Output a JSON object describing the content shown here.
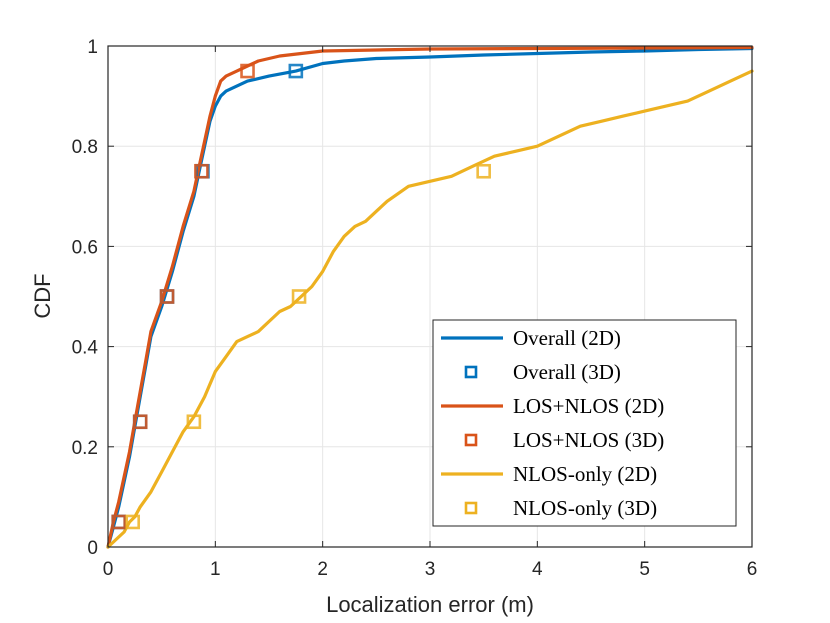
{
  "chart_data": {
    "type": "line",
    "title": "",
    "xlabel": "Localization error (m)",
    "ylabel": "CDF",
    "xlim": [
      0,
      6
    ],
    "ylim": [
      0,
      1
    ],
    "xticks": [
      "0",
      "1",
      "2",
      "3",
      "4",
      "5",
      "6"
    ],
    "yticks": [
      "0",
      "0.2",
      "0.4",
      "0.6",
      "0.8",
      "1"
    ],
    "grid": true,
    "legend_position": "bottom-right",
    "series": [
      {
        "name": "Overall (2D)",
        "kind": "line",
        "color": "#0072BD",
        "x": [
          0,
          0.05,
          0.1,
          0.15,
          0.2,
          0.25,
          0.3,
          0.35,
          0.4,
          0.5,
          0.6,
          0.7,
          0.8,
          0.85,
          0.9,
          0.95,
          1.0,
          1.05,
          1.1,
          1.2,
          1.3,
          1.5,
          1.75,
          2.0,
          2.2,
          2.5,
          3.0,
          3.5,
          4.0,
          4.5,
          5.0,
          5.5,
          6.0
        ],
        "y": [
          0,
          0.04,
          0.08,
          0.13,
          0.18,
          0.24,
          0.3,
          0.36,
          0.42,
          0.48,
          0.55,
          0.63,
          0.7,
          0.75,
          0.8,
          0.85,
          0.88,
          0.9,
          0.91,
          0.92,
          0.93,
          0.94,
          0.95,
          0.965,
          0.97,
          0.975,
          0.978,
          0.982,
          0.985,
          0.988,
          0.99,
          0.993,
          0.995
        ]
      },
      {
        "name": "Overall (3D)",
        "kind": "markers",
        "color": "#0072BD",
        "x": [
          0.1,
          0.3,
          0.55,
          0.88,
          1.75
        ],
        "y": [
          0.05,
          0.25,
          0.5,
          0.75,
          0.95
        ]
      },
      {
        "name": "LOS+NLOS (2D)",
        "kind": "line",
        "color": "#D95319",
        "x": [
          0,
          0.05,
          0.1,
          0.15,
          0.2,
          0.25,
          0.3,
          0.35,
          0.4,
          0.5,
          0.6,
          0.7,
          0.8,
          0.85,
          0.9,
          0.95,
          1.0,
          1.05,
          1.1,
          1.2,
          1.3,
          1.4,
          1.5,
          1.6,
          1.8,
          2.0,
          2.5,
          3.0,
          4.0,
          5.0,
          6.0
        ],
        "y": [
          0,
          0.05,
          0.09,
          0.14,
          0.19,
          0.25,
          0.31,
          0.37,
          0.43,
          0.49,
          0.56,
          0.64,
          0.71,
          0.76,
          0.81,
          0.86,
          0.9,
          0.93,
          0.94,
          0.95,
          0.96,
          0.97,
          0.975,
          0.98,
          0.985,
          0.99,
          0.992,
          0.994,
          0.995,
          0.996,
          0.997
        ]
      },
      {
        "name": "LOS+NLOS (3D)",
        "kind": "markers",
        "color": "#D95319",
        "x": [
          0.1,
          0.3,
          0.55,
          0.87,
          1.3
        ],
        "y": [
          0.05,
          0.25,
          0.5,
          0.75,
          0.95
        ]
      },
      {
        "name": "NLOS-only (2D)",
        "kind": "line",
        "color": "#EDB120",
        "x": [
          0,
          0.05,
          0.1,
          0.15,
          0.2,
          0.25,
          0.3,
          0.4,
          0.5,
          0.6,
          0.7,
          0.8,
          0.9,
          1.0,
          1.1,
          1.2,
          1.3,
          1.4,
          1.5,
          1.6,
          1.7,
          1.8,
          1.9,
          2.0,
          2.1,
          2.2,
          2.3,
          2.4,
          2.5,
          2.6,
          2.8,
          3.0,
          3.2,
          3.4,
          3.6,
          3.8,
          4.0,
          4.2,
          4.4,
          4.6,
          4.8,
          5.0,
          5.2,
          5.4,
          5.6,
          5.8,
          6.0
        ],
        "y": [
          0,
          0.01,
          0.02,
          0.03,
          0.05,
          0.06,
          0.08,
          0.11,
          0.15,
          0.19,
          0.23,
          0.26,
          0.3,
          0.35,
          0.38,
          0.41,
          0.42,
          0.43,
          0.45,
          0.47,
          0.48,
          0.5,
          0.52,
          0.55,
          0.59,
          0.62,
          0.64,
          0.65,
          0.67,
          0.69,
          0.72,
          0.73,
          0.74,
          0.76,
          0.78,
          0.79,
          0.8,
          0.82,
          0.84,
          0.85,
          0.86,
          0.87,
          0.88,
          0.89,
          0.91,
          0.93,
          0.95
        ]
      },
      {
        "name": "NLOS-only (3D)",
        "kind": "markers",
        "color": "#EDB120",
        "x": [
          0.23,
          0.8,
          1.78,
          3.5
        ],
        "y": [
          0.05,
          0.25,
          0.5,
          0.75
        ]
      }
    ]
  }
}
